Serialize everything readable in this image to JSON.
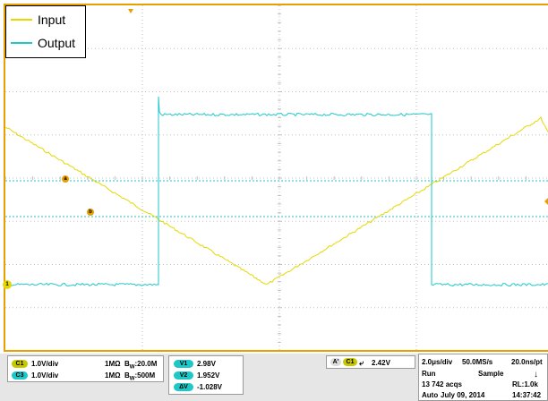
{
  "legend": {
    "items": [
      {
        "label": "Input",
        "color": "#e6d800"
      },
      {
        "label": "Output",
        "color": "#1ec8c8"
      }
    ]
  },
  "screen": {
    "grid_color": "#bfbfbf",
    "frame_color": "#e8a000",
    "channel_marker_label": "1",
    "ref_marker_a": "a",
    "ref_marker_b": "b"
  },
  "chart_data": {
    "type": "line",
    "series": [
      {
        "name": "Input",
        "color": "#e6d800"
      },
      {
        "name": "Output",
        "color": "#1ec8c8"
      }
    ]
  },
  "channels": [
    {
      "pill": "C1",
      "scale": "1.0V/div",
      "impedance": "1MΩ",
      "bw_prefix": "B",
      "bw_sub": "W",
      "bw_value": ":20.0M",
      "color": "#c8c800"
    },
    {
      "pill": "C3",
      "scale": "1.0V/div",
      "impedance": "1MΩ",
      "bw_prefix": "B",
      "bw_sub": "W",
      "bw_value": ":500M",
      "color": "#1ec8c8"
    }
  ],
  "cursors": [
    {
      "pill": "V1",
      "value": "2.98V"
    },
    {
      "pill": "V2",
      "value": "1.952V"
    },
    {
      "pill": "ΔV",
      "value": "-1.028V"
    }
  ],
  "trigger": {
    "pill_a": "A'",
    "pill_src": "C1",
    "edge": "⤶",
    "level": "2.42V"
  },
  "acquisition": {
    "timebase": "2.0μs/div",
    "sample_rate": "50.0MS/s",
    "resolution": "20.0ns/pt",
    "state": "Run",
    "mode": "Sample",
    "acqs": "13 742 acqs",
    "record_length": "RL:1.0k",
    "trigger_mode": "Auto",
    "date": "July 09, 2014",
    "time": "14:37:42"
  }
}
